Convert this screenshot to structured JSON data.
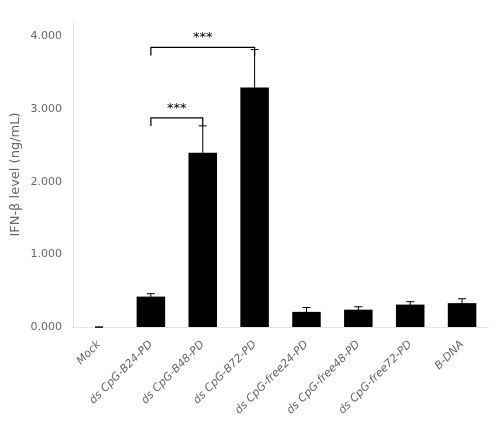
{
  "chart_data": {
    "type": "bar",
    "categories": [
      "Mock",
      "ds CpG-B24-PD",
      "ds CpG-B48-PD",
      "ds CpG-B72-PD",
      "ds CpG-free24-PD",
      "ds CpG-free48-PD",
      "ds CpG-free72-PD",
      "B-DNA"
    ],
    "values": [
      0.0,
      0.42,
      2.4,
      3.3,
      0.21,
      0.24,
      0.31,
      0.33
    ],
    "errors": [
      0.0,
      0.04,
      0.37,
      0.52,
      0.06,
      0.04,
      0.04,
      0.06
    ],
    "color": "#000000",
    "ylabel": "IFN-β level (ng/mL)",
    "ylim": [
      0,
      4.2
    ],
    "yticks": [
      {
        "value": 0.0,
        "label": "0.000"
      },
      {
        "value": 1.0,
        "label": "1.000"
      },
      {
        "value": 2.0,
        "label": "2.000"
      },
      {
        "value": 3.0,
        "label": "3.000"
      },
      {
        "value": 4.0,
        "label": "4.000"
      }
    ],
    "grid": false,
    "annotations": [
      {
        "text": "***",
        "x1": "ds CpG-B24-PD",
        "x2": "ds CpG-B48-PD",
        "y": 2.88
      },
      {
        "text": "***",
        "x1": "ds CpG-B24-PD",
        "x2": "ds CpG-B72-PD",
        "y": 3.85
      }
    ]
  }
}
